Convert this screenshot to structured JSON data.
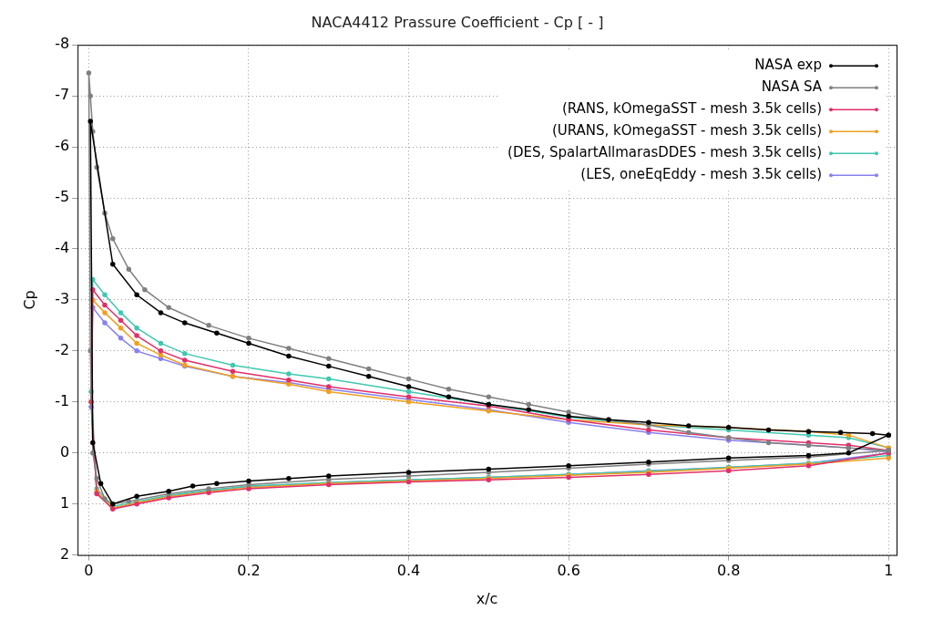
{
  "chart_data": {
    "type": "line",
    "title": "NACA4412 Prassure Coefficient - Cp [ - ]",
    "x_label": "x/c",
    "y_label": "Cp",
    "xlim": [
      -0.014,
      1.01
    ],
    "xticks": [
      0,
      0.2,
      0.4,
      0.6,
      0.8,
      1
    ],
    "ylim": [
      2,
      -8
    ],
    "yticks": [
      -8,
      -7,
      -6,
      -5,
      -4,
      -3,
      -2,
      -1,
      0,
      1,
      2
    ],
    "grid": true,
    "legend": "upper right",
    "marker": "circle",
    "line_style": "solid",
    "series": [
      {
        "name": "NASA exp",
        "color": "#000000",
        "x": [
          1.0,
          0.95,
          0.9,
          0.8,
          0.7,
          0.6,
          0.5,
          0.4,
          0.3,
          0.25,
          0.2,
          0.16,
          0.13,
          0.1,
          0.06,
          0.03,
          0.015,
          0.005,
          0.002,
          0.03,
          0.06,
          0.09,
          0.12,
          0.16,
          0.2,
          0.25,
          0.3,
          0.35,
          0.4,
          0.45,
          0.5,
          0.55,
          0.6,
          0.65,
          0.7,
          0.75,
          0.8,
          0.85,
          0.9,
          0.94,
          0.98,
          1.0
        ],
        "values": [
          -0.35,
          0.0,
          0.05,
          0.1,
          0.18,
          0.25,
          0.32,
          0.38,
          0.45,
          0.5,
          0.55,
          0.6,
          0.65,
          0.75,
          0.85,
          1.0,
          0.6,
          -0.2,
          -6.5,
          -3.7,
          -3.1,
          -2.75,
          -2.55,
          -2.35,
          -2.15,
          -1.9,
          -1.7,
          -1.5,
          -1.3,
          -1.1,
          -0.95,
          -0.85,
          -0.72,
          -0.65,
          -0.6,
          -0.53,
          -0.5,
          -0.45,
          -0.42,
          -0.4,
          -0.38,
          -0.35
        ]
      },
      {
        "name": "NASA SA",
        "color": "#808080",
        "x": [
          1.0,
          0.9,
          0.8,
          0.7,
          0.6,
          0.5,
          0.4,
          0.3,
          0.2,
          0.15,
          0.1,
          0.05,
          0.03,
          0.02,
          0.01,
          0.005,
          0.002,
          0.0,
          0.002,
          0.005,
          0.01,
          0.02,
          0.03,
          0.05,
          0.07,
          0.1,
          0.15,
          0.2,
          0.25,
          0.3,
          0.35,
          0.4,
          0.45,
          0.5,
          0.55,
          0.6,
          0.65,
          0.7,
          0.75,
          0.8,
          0.85,
          0.9,
          0.95,
          1.0
        ],
        "values": [
          -0.05,
          0.08,
          0.15,
          0.22,
          0.3,
          0.38,
          0.45,
          0.52,
          0.62,
          0.7,
          0.8,
          0.95,
          1.0,
          0.9,
          0.5,
          0.0,
          -2.0,
          -7.45,
          -7.0,
          -6.3,
          -5.6,
          -4.7,
          -4.2,
          -3.6,
          -3.2,
          -2.85,
          -2.5,
          -2.25,
          -2.05,
          -1.85,
          -1.65,
          -1.45,
          -1.25,
          -1.1,
          -0.95,
          -0.8,
          -0.65,
          -0.55,
          -0.4,
          -0.3,
          -0.2,
          -0.15,
          -0.1,
          -0.05
        ]
      },
      {
        "name": "(RANS, kOmegaSST - mesh 3.5k cells)",
        "color": "#e0306a",
        "x": [
          1.0,
          0.9,
          0.8,
          0.7,
          0.6,
          0.5,
          0.4,
          0.3,
          0.2,
          0.15,
          0.1,
          0.06,
          0.03,
          0.01,
          0.003,
          0.005,
          0.02,
          0.04,
          0.06,
          0.09,
          0.12,
          0.18,
          0.25,
          0.3,
          0.4,
          0.5,
          0.6,
          0.7,
          0.8,
          0.9,
          0.95,
          1.0
        ],
        "values": [
          0.0,
          0.25,
          0.35,
          0.42,
          0.48,
          0.53,
          0.57,
          0.62,
          0.7,
          0.78,
          0.88,
          1.0,
          1.1,
          0.8,
          -1.0,
          -3.2,
          -2.9,
          -2.6,
          -2.3,
          -2.0,
          -1.82,
          -1.6,
          -1.43,
          -1.3,
          -1.1,
          -0.92,
          -0.65,
          -0.45,
          -0.3,
          -0.2,
          -0.15,
          -0.05
        ]
      },
      {
        "name": "(URANS, kOmegaSST - mesh 3.5k cells)",
        "color": "#f0a020",
        "x": [
          1.0,
          0.9,
          0.8,
          0.7,
          0.6,
          0.5,
          0.4,
          0.3,
          0.2,
          0.15,
          0.1,
          0.06,
          0.03,
          0.01,
          0.003,
          0.005,
          0.02,
          0.04,
          0.06,
          0.09,
          0.12,
          0.18,
          0.25,
          0.3,
          0.4,
          0.5,
          0.6,
          0.7,
          0.8,
          0.9,
          0.95,
          1.0
        ],
        "values": [
          0.1,
          0.22,
          0.3,
          0.38,
          0.44,
          0.5,
          0.55,
          0.6,
          0.68,
          0.76,
          0.86,
          0.98,
          1.08,
          0.75,
          -1.0,
          -3.0,
          -2.75,
          -2.45,
          -2.15,
          -1.92,
          -1.72,
          -1.5,
          -1.35,
          -1.2,
          -1.0,
          -0.82,
          -0.65,
          -0.55,
          -0.5,
          -0.42,
          -0.35,
          -0.1
        ]
      },
      {
        "name": "(DES, SpalartAllmarasDDES - mesh 3.5k cells)",
        "color": "#40c8b0",
        "x": [
          1.0,
          0.9,
          0.8,
          0.7,
          0.6,
          0.5,
          0.4,
          0.3,
          0.2,
          0.15,
          0.1,
          0.06,
          0.03,
          0.01,
          0.003,
          0.005,
          0.02,
          0.04,
          0.06,
          0.09,
          0.12,
          0.18,
          0.25,
          0.3,
          0.4,
          0.5,
          0.6,
          0.7,
          0.8,
          0.9,
          0.95,
          1.0
        ],
        "values": [
          0.05,
          0.2,
          0.28,
          0.36,
          0.42,
          0.48,
          0.53,
          0.58,
          0.65,
          0.73,
          0.83,
          0.95,
          1.05,
          0.7,
          -1.2,
          -3.4,
          -3.1,
          -2.75,
          -2.45,
          -2.15,
          -1.95,
          -1.72,
          -1.55,
          -1.45,
          -1.2,
          -0.95,
          -0.7,
          -0.55,
          -0.45,
          -0.35,
          -0.3,
          -0.1
        ]
      },
      {
        "name": "(LES, oneEqEddy - mesh 3.5k cells)",
        "color": "#8880f0",
        "x": [
          1.0,
          0.9,
          0.8,
          0.7,
          0.6,
          0.5,
          0.4,
          0.3,
          0.2,
          0.15,
          0.1,
          0.06,
          0.03,
          0.01,
          0.003,
          0.005,
          0.02,
          0.04,
          0.06,
          0.09,
          0.12,
          0.18,
          0.25,
          0.3,
          0.4,
          0.5,
          0.6,
          0.7,
          0.8,
          0.9,
          0.95,
          1.0
        ],
        "values": [
          0.0,
          0.2,
          0.28,
          0.35,
          0.42,
          0.48,
          0.53,
          0.58,
          0.66,
          0.74,
          0.85,
          0.98,
          1.08,
          0.78,
          -0.9,
          -2.85,
          -2.55,
          -2.25,
          -2.0,
          -1.85,
          -1.7,
          -1.5,
          -1.38,
          -1.25,
          -1.05,
          -0.85,
          -0.6,
          -0.4,
          -0.25,
          -0.15,
          -0.1,
          -0.02
        ]
      }
    ]
  }
}
